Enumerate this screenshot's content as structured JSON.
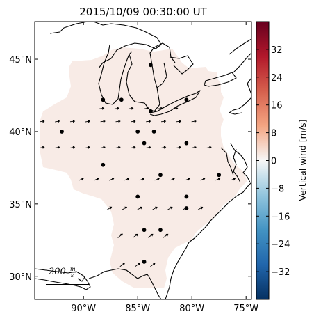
{
  "title": "2015/10/09 00:30:00 UT",
  "colorbar": {
    "label": "Vertical wind [m/s]",
    "ticks": [
      "32",
      "24",
      "16",
      "8",
      "0",
      "−8",
      "−16",
      "−24",
      "−32"
    ],
    "tick_values": [
      32,
      24,
      16,
      8,
      0,
      -8,
      -16,
      -24,
      -32
    ],
    "range": [
      -40,
      40
    ],
    "colormap": "RdBu_r"
  },
  "map": {
    "lon_ticks": [
      "90°W",
      "85°W",
      "80°W",
      "75°W"
    ],
    "lon_values": [
      -90,
      -85,
      -80,
      -75
    ],
    "lat_ticks": [
      "45°N",
      "40°N",
      "35°N",
      "30°N"
    ],
    "lat_values": [
      45,
      40,
      35,
      30
    ],
    "lon_range": [
      -94.5,
      -74.5
    ],
    "lat_range": [
      28.4,
      47.6
    ],
    "fill_color": "#f8ebe6",
    "scale_label": "200 m/s",
    "scale_num": "200",
    "scale_frac_top": "m",
    "scale_frac_bottom": "s",
    "stations": [
      [
        -88.2,
        42.2
      ],
      [
        -86.5,
        42.2
      ],
      [
        -83.8,
        44.6
      ],
      [
        -83.8,
        41.4
      ],
      [
        -80.5,
        42.2
      ],
      [
        -92.0,
        40.0
      ],
      [
        -85.0,
        40.0
      ],
      [
        -83.5,
        40.0
      ],
      [
        -84.4,
        39.2
      ],
      [
        -80.5,
        39.2
      ],
      [
        -88.2,
        37.7
      ],
      [
        -82.9,
        37.0
      ],
      [
        -77.5,
        37.0
      ],
      [
        -85.0,
        35.5
      ],
      [
        -80.5,
        35.5
      ],
      [
        -80.5,
        34.7
      ],
      [
        -84.4,
        33.2
      ],
      [
        -82.9,
        33.2
      ],
      [
        -84.4,
        31.0
      ]
    ],
    "wind_vectors": [
      [
        -88.3,
        41.6,
        0.8,
        0.1
      ],
      [
        -86.9,
        41.6,
        0.8,
        0.1
      ],
      [
        -85.6,
        41.6,
        0.8,
        0.1
      ],
      [
        -84.2,
        41.6,
        0.8,
        0.15
      ],
      [
        -82.9,
        41.6,
        0.8,
        0.1
      ],
      [
        -81.5,
        41.6,
        0.8,
        0.1
      ],
      [
        -93.8,
        40.7,
        0.8,
        0.1
      ],
      [
        -92.4,
        40.7,
        0.8,
        0.15
      ],
      [
        -91.0,
        40.7,
        0.8,
        0.1
      ],
      [
        -89.6,
        40.7,
        0.8,
        0.15
      ],
      [
        -88.2,
        40.7,
        0.8,
        0.1
      ],
      [
        -86.8,
        40.7,
        0.8,
        0.1
      ],
      [
        -85.4,
        40.7,
        0.8,
        0.1
      ],
      [
        -84.0,
        40.7,
        0.8,
        0.1
      ],
      [
        -82.6,
        40.7,
        0.8,
        0.1
      ],
      [
        -81.2,
        40.7,
        0.8,
        0.1
      ],
      [
        -79.8,
        40.7,
        0.8,
        0.1
      ],
      [
        -93.8,
        38.9,
        0.8,
        0.15
      ],
      [
        -92.4,
        38.9,
        0.8,
        0.15
      ],
      [
        -91.0,
        38.9,
        0.8,
        0.15
      ],
      [
        -89.6,
        38.9,
        0.8,
        0.15
      ],
      [
        -88.2,
        38.9,
        0.8,
        0.15
      ],
      [
        -86.8,
        38.9,
        0.8,
        0.15
      ],
      [
        -85.4,
        38.9,
        0.8,
        0.15
      ],
      [
        -84.0,
        38.9,
        0.8,
        0.15
      ],
      [
        -82.6,
        38.9,
        0.8,
        0.15
      ],
      [
        -81.2,
        38.9,
        0.8,
        0.15
      ],
      [
        -79.8,
        38.9,
        0.8,
        0.15
      ],
      [
        -78.4,
        38.9,
        0.8,
        0.15
      ],
      [
        -90.2,
        36.7,
        0.8,
        0.35
      ],
      [
        -88.8,
        36.7,
        0.8,
        0.35
      ],
      [
        -87.4,
        36.7,
        0.8,
        0.35
      ],
      [
        -86.0,
        36.7,
        0.8,
        0.3
      ],
      [
        -84.6,
        36.7,
        0.8,
        0.3
      ],
      [
        -83.2,
        36.7,
        0.8,
        0.3
      ],
      [
        -81.8,
        36.7,
        0.8,
        0.3
      ],
      [
        -80.4,
        36.7,
        0.8,
        0.3
      ],
      [
        -79.0,
        36.7,
        0.8,
        0.3
      ],
      [
        -77.6,
        36.7,
        0.8,
        0.3
      ],
      [
        -76.2,
        36.7,
        0.8,
        0.3
      ],
      [
        -87.6,
        34.7,
        0.8,
        0.5
      ],
      [
        -86.2,
        34.7,
        0.8,
        0.45
      ],
      [
        -84.8,
        34.7,
        0.8,
        0.45
      ],
      [
        -83.4,
        34.7,
        0.8,
        0.45
      ],
      [
        -82.0,
        34.7,
        0.8,
        0.45
      ],
      [
        -80.6,
        34.7,
        0.8,
        0.45
      ],
      [
        -79.2,
        34.7,
        0.8,
        0.45
      ],
      [
        -86.6,
        32.8,
        0.8,
        0.65
      ],
      [
        -85.2,
        32.8,
        0.8,
        0.6
      ],
      [
        -83.8,
        32.8,
        0.8,
        0.6
      ],
      [
        -82.4,
        32.8,
        0.8,
        0.6
      ],
      [
        -86.4,
        30.8,
        0.8,
        0.6
      ],
      [
        -85.0,
        30.8,
        0.8,
        0.6
      ],
      [
        -83.6,
        30.8,
        0.8,
        0.6
      ]
    ]
  }
}
